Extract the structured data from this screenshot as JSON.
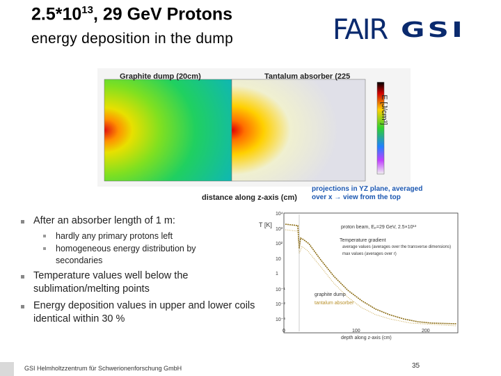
{
  "header": {
    "title": {
      "base": "2.5*10",
      "exponent": "13",
      "rest": ", 29 GeV Protons"
    },
    "subtitle": "energy deposition in the dump"
  },
  "logos": [
    "FAIR",
    "GSI"
  ],
  "figure": {
    "left_label": "Graphite dump (20cm)",
    "right_label": "Tantalum absorber (225",
    "colorbar_label": "E [J/cm³]",
    "x_label": "distance along z-axis (cm)",
    "note": [
      "projections in YZ plane, averaged",
      "over x → view from the top"
    ]
  },
  "bullets": [
    {
      "text": "After an absorber length of 1 m:",
      "sub": [
        "hardly any primary protons left",
        "homogeneous energy distribution by secondaries"
      ]
    },
    {
      "text": "Temperature values well below the sublimation/melting points"
    },
    {
      "text": "Energy deposition values in upper and lower coils identical within 30 %"
    }
  ],
  "plot": {
    "y_label": "T [K]",
    "x_label": "depth along z-axis (cm)",
    "beam": "proton beam, Eₚ=29 GeV, 2.5×10¹³",
    "legend_title": "Temperature gradient",
    "legend": [
      "average values (averages over the transverse dimensions)",
      "max values (averages over r)"
    ],
    "materials": [
      "graphite dump",
      "tantalum absorber"
    ],
    "xticks": [
      "0",
      "100",
      "200"
    ],
    "yticks": [
      "10⁴",
      "10³",
      "10²",
      "10",
      "1",
      "10⁻¹",
      "10⁻²",
      "10⁻³"
    ]
  },
  "footer": {
    "org": "GSI Helmholtzzentrum für Schwerionenforschung GmbH",
    "page": "35"
  }
}
